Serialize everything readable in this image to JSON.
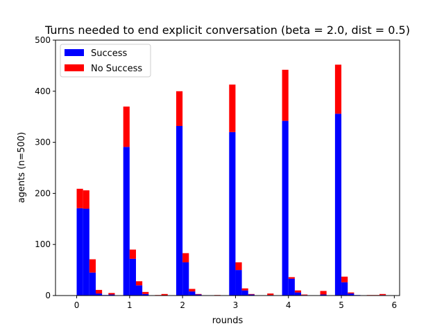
{
  "chart_data": {
    "type": "bar",
    "stacked": true,
    "title": "Turns needed to end explicit conversation (beta = 2.0, dist = 0.5)",
    "xlabel": "rounds",
    "ylabel": "agents (n=500)",
    "xlim": [
      -0.4,
      6.1
    ],
    "ylim": [
      0,
      500
    ],
    "xticks": [
      0,
      1,
      2,
      3,
      4,
      5,
      6
    ],
    "yticks": [
      0,
      100,
      200,
      300,
      400,
      500
    ],
    "bin_width": 0.12,
    "legend": {
      "position": "top-left",
      "entries": [
        "Success",
        "No Success"
      ]
    },
    "colors": {
      "Success": "#0000ff",
      "No Success": "#ff0000"
    },
    "x": [
      0.06,
      0.18,
      0.3,
      0.42,
      0.54,
      0.66,
      0.94,
      1.06,
      1.18,
      1.3,
      1.42,
      1.54,
      1.66,
      1.78,
      1.94,
      2.06,
      2.18,
      2.3,
      2.42,
      2.54,
      2.66,
      2.78,
      2.94,
      3.06,
      3.18,
      3.3,
      3.42,
      3.54,
      3.66,
      3.78,
      3.94,
      4.06,
      4.18,
      4.3,
      4.42,
      4.54,
      4.66,
      4.78,
      4.94,
      5.06,
      5.18,
      5.3,
      5.42,
      5.54,
      5.66,
      5.78
    ],
    "series": [
      {
        "name": "Success",
        "values": [
          171,
          170,
          45,
          4,
          1,
          2,
          291,
          72,
          20,
          3,
          0,
          0,
          0,
          0,
          332,
          65,
          8,
          2,
          0,
          0,
          0,
          0,
          320,
          50,
          10,
          2,
          0,
          0,
          1,
          0,
          342,
          33,
          6,
          1,
          0,
          0,
          2,
          0,
          356,
          26,
          4,
          1,
          0,
          0,
          0,
          1
        ]
      },
      {
        "name": "No Success",
        "values": [
          38,
          36,
          26,
          7,
          0,
          3,
          79,
          18,
          8,
          4,
          0,
          1,
          3,
          0,
          68,
          18,
          5,
          1,
          0,
          0,
          1,
          0,
          93,
          15,
          4,
          1,
          0,
          0,
          3,
          0,
          100,
          3,
          4,
          1,
          0,
          0,
          7,
          0,
          96,
          11,
          2,
          0,
          0,
          1,
          1,
          2
        ]
      }
    ]
  }
}
